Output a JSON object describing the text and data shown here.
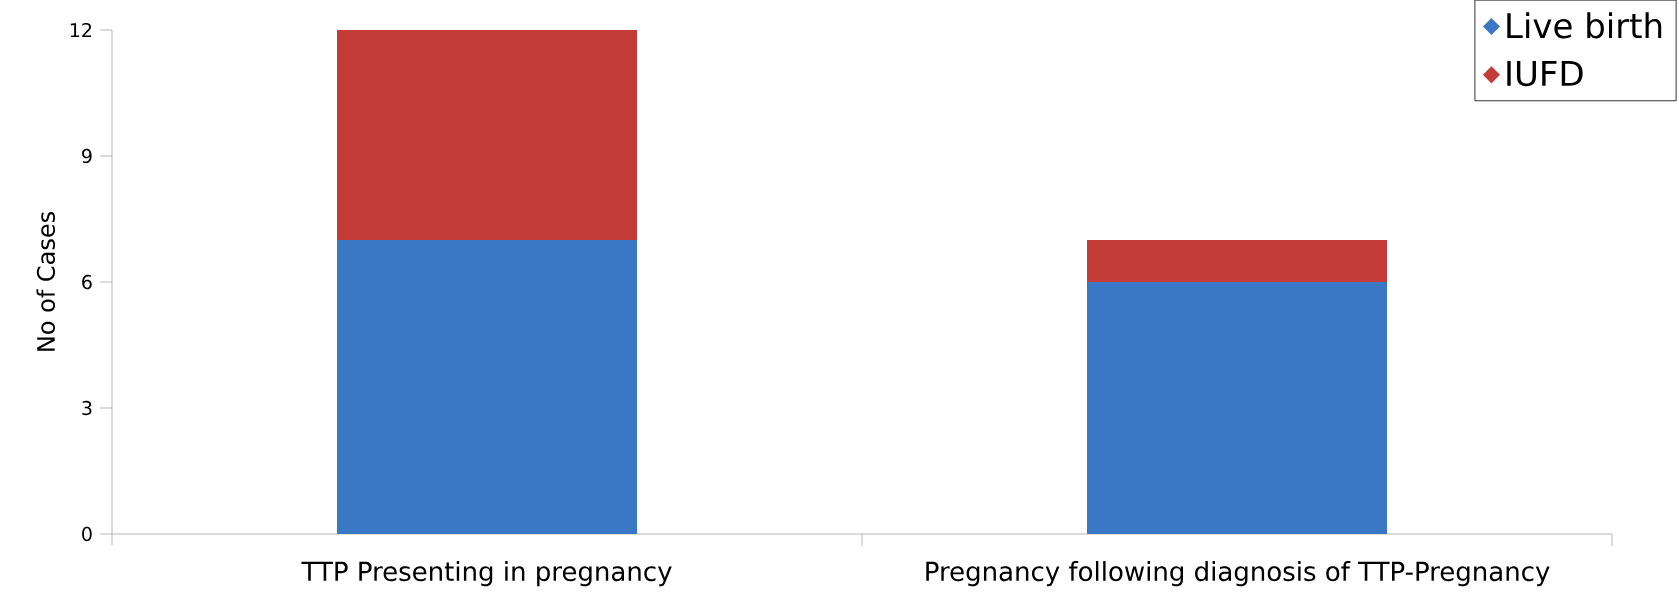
{
  "chart_data": {
    "type": "bar",
    "stacked": true,
    "ylabel": "No of Cases",
    "categories": [
      "TTP Presenting in pregnancy",
      "Pregnancy following diagnosis of TTP-Pregnancy"
    ],
    "series": [
      {
        "name": "Live birth",
        "color": "#3a78c6",
        "values": [
          7,
          6
        ]
      },
      {
        "name": "IUFD",
        "color": "#c43c38",
        "values": [
          5,
          1
        ]
      }
    ],
    "ylim": [
      0,
      12
    ],
    "yticks": [
      0,
      3,
      6,
      9,
      12
    ],
    "grid": false,
    "legend": "top right"
  }
}
